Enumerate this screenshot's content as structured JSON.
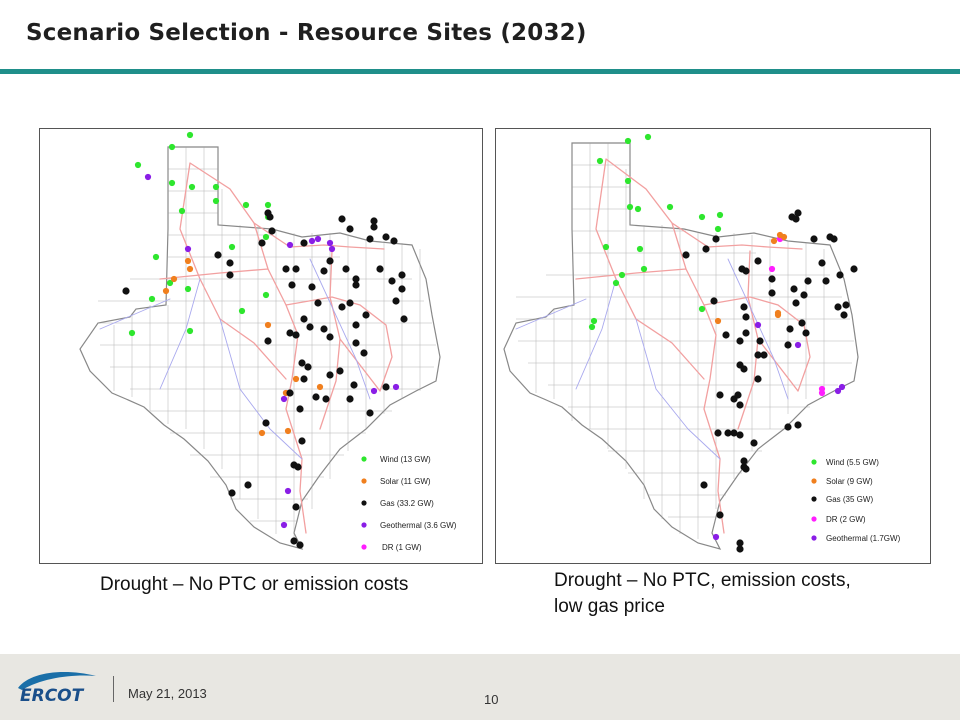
{
  "page_title": "Scenario Selection - Resource Sites (2032)",
  "maps": [
    {
      "caption": "Drought – No PTC or emission costs",
      "legend": [
        {
          "label": "Wind (13 GW)",
          "color": "#2ee62e"
        },
        {
          "label": "Solar (11 GW)",
          "color": "#f07f1e"
        },
        {
          "label": "Gas (33.2 GW)",
          "color": "#111111"
        },
        {
          "label": "Geothermal (3.6 GW)",
          "color": "#8a1ee6"
        },
        {
          "label": "DR (1 GW)",
          "color": "#ff1eff"
        }
      ]
    },
    {
      "caption": "Drought – No PTC, emission costs, low gas price",
      "legend": [
        {
          "label": "Wind (5.5 GW)",
          "color": "#2ee62e"
        },
        {
          "label": "Solar (9 GW)",
          "color": "#f07f1e"
        },
        {
          "label": "Gas (35 GW)",
          "color": "#111111"
        },
        {
          "label": "DR (2 GW)",
          "color": "#ff1eff"
        },
        {
          "label": "Geothermal (1.7GW)",
          "color": "#8a1ee6"
        }
      ]
    }
  ],
  "footer": {
    "logo_text": "ERCOT",
    "date": "May 21, 2013",
    "page_number": "10"
  }
}
